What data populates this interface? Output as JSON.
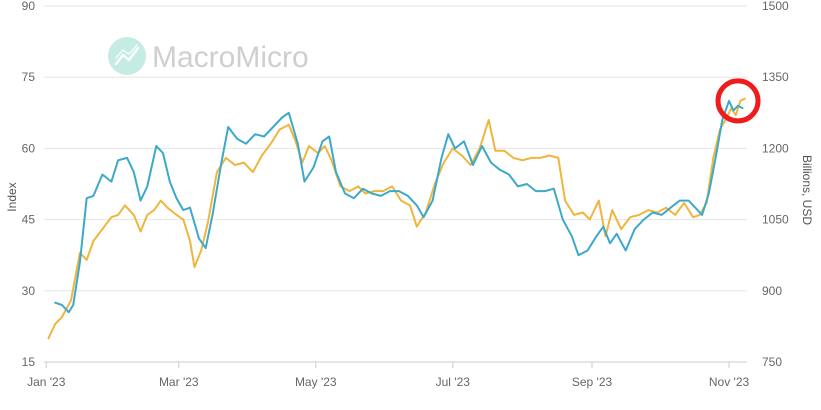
{
  "watermark": {
    "brand": "MacroMicro",
    "icon": "chart-line-icon",
    "color": "#7fd3c6"
  },
  "chart_data": {
    "type": "line",
    "xlabel": "",
    "ylabel_left": "Index",
    "ylabel_right": "Billions, USD",
    "x_ticks": [
      "Jan '23",
      "Mar '23",
      "May '23",
      "Jul '23",
      "Sep '23",
      "Nov '23"
    ],
    "x_tick_dates": [
      "2023-01-01",
      "2023-03-01",
      "2023-05-01",
      "2023-07-01",
      "2023-09-01",
      "2023-11-01"
    ],
    "x_range": [
      "2022-12-31",
      "2023-11-09"
    ],
    "y_left_ticks": [
      "15",
      "30",
      "45",
      "60",
      "75",
      "90"
    ],
    "ylim_left": [
      15,
      90
    ],
    "y_right_ticks": [
      "750",
      "900",
      "1050",
      "1200",
      "1350",
      "1500"
    ],
    "ylim_right": [
      750,
      1500
    ],
    "grid": true,
    "series": [
      {
        "axis": "left",
        "color": "#3da9c9",
        "points": [
          [
            "2023-01-05",
            27.5
          ],
          [
            "2023-01-08",
            27.0
          ],
          [
            "2023-01-11",
            25.5
          ],
          [
            "2023-01-13",
            27.0
          ],
          [
            "2023-01-16",
            36.0
          ],
          [
            "2023-01-19",
            49.5
          ],
          [
            "2023-01-22",
            50.0
          ],
          [
            "2023-01-26",
            54.5
          ],
          [
            "2023-01-30",
            53.0
          ],
          [
            "2023-02-02",
            57.5
          ],
          [
            "2023-02-06",
            58.0
          ],
          [
            "2023-02-09",
            55.0
          ],
          [
            "2023-02-12",
            49.0
          ],
          [
            "2023-02-15",
            52.0
          ],
          [
            "2023-02-19",
            60.5
          ],
          [
            "2023-02-22",
            59.0
          ],
          [
            "2023-02-25",
            53.0
          ],
          [
            "2023-02-28",
            49.5
          ],
          [
            "2023-03-03",
            47.0
          ],
          [
            "2023-03-06",
            47.5
          ],
          [
            "2023-03-10",
            41.0
          ],
          [
            "2023-03-13",
            39.0
          ],
          [
            "2023-03-16",
            46.0
          ],
          [
            "2023-03-20",
            57.0
          ],
          [
            "2023-03-23",
            64.5
          ],
          [
            "2023-03-27",
            62.0
          ],
          [
            "2023-03-31",
            61.0
          ],
          [
            "2023-04-04",
            63.0
          ],
          [
            "2023-04-08",
            62.5
          ],
          [
            "2023-04-12",
            64.5
          ],
          [
            "2023-04-16",
            66.5
          ],
          [
            "2023-04-19",
            67.5
          ],
          [
            "2023-04-23",
            61.0
          ],
          [
            "2023-04-26",
            53.0
          ],
          [
            "2023-04-30",
            56.0
          ],
          [
            "2023-05-04",
            61.5
          ],
          [
            "2023-05-07",
            62.5
          ],
          [
            "2023-05-10",
            55.0
          ],
          [
            "2023-05-14",
            50.5
          ],
          [
            "2023-05-18",
            49.5
          ],
          [
            "2023-05-22",
            51.5
          ],
          [
            "2023-05-26",
            50.5
          ],
          [
            "2023-05-30",
            50.0
          ],
          [
            "2023-06-03",
            51.0
          ],
          [
            "2023-06-07",
            51.0
          ],
          [
            "2023-06-11",
            50.0
          ],
          [
            "2023-06-15",
            48.0
          ],
          [
            "2023-06-18",
            45.5
          ],
          [
            "2023-06-22",
            49.0
          ],
          [
            "2023-06-26",
            58.0
          ],
          [
            "2023-06-29",
            63.0
          ],
          [
            "2023-07-02",
            60.0
          ],
          [
            "2023-07-06",
            61.5
          ],
          [
            "2023-07-10",
            56.5
          ],
          [
            "2023-07-14",
            60.5
          ],
          [
            "2023-07-18",
            57.0
          ],
          [
            "2023-07-22",
            55.5
          ],
          [
            "2023-07-26",
            54.5
          ],
          [
            "2023-07-30",
            52.0
          ],
          [
            "2023-08-03",
            52.5
          ],
          [
            "2023-08-07",
            51.0
          ],
          [
            "2023-08-11",
            51.0
          ],
          [
            "2023-08-15",
            51.5
          ],
          [
            "2023-08-19",
            45.0
          ],
          [
            "2023-08-23",
            41.5
          ],
          [
            "2023-08-26",
            37.5
          ],
          [
            "2023-08-30",
            38.5
          ],
          [
            "2023-09-03",
            41.5
          ],
          [
            "2023-09-06",
            43.5
          ],
          [
            "2023-09-09",
            40.0
          ],
          [
            "2023-09-12",
            42.0
          ],
          [
            "2023-09-16",
            38.5
          ],
          [
            "2023-09-20",
            43.0
          ],
          [
            "2023-09-24",
            45.0
          ],
          [
            "2023-09-28",
            46.5
          ],
          [
            "2023-10-02",
            46.0
          ],
          [
            "2023-10-06",
            47.5
          ],
          [
            "2023-10-10",
            49.0
          ],
          [
            "2023-10-14",
            49.0
          ],
          [
            "2023-10-17",
            47.5
          ],
          [
            "2023-10-20",
            46.0
          ],
          [
            "2023-10-23",
            50.5
          ],
          [
            "2023-10-26",
            58.0
          ],
          [
            "2023-10-29",
            66.0
          ],
          [
            "2023-11-01",
            70.0
          ],
          [
            "2023-11-03",
            68.0
          ],
          [
            "2023-11-05",
            69.0
          ],
          [
            "2023-11-07",
            68.5
          ]
        ]
      },
      {
        "axis": "right",
        "color": "#f0b53d",
        "points": [
          [
            "2023-01-02",
            800
          ],
          [
            "2023-01-05",
            830
          ],
          [
            "2023-01-08",
            845
          ],
          [
            "2023-01-12",
            880
          ],
          [
            "2023-01-16",
            980
          ],
          [
            "2023-01-19",
            965
          ],
          [
            "2023-01-22",
            1005
          ],
          [
            "2023-01-26",
            1030
          ],
          [
            "2023-01-30",
            1055
          ],
          [
            "2023-02-02",
            1060
          ],
          [
            "2023-02-05",
            1080
          ],
          [
            "2023-02-09",
            1060
          ],
          [
            "2023-02-12",
            1025
          ],
          [
            "2023-02-15",
            1060
          ],
          [
            "2023-02-18",
            1070
          ],
          [
            "2023-02-21",
            1090
          ],
          [
            "2023-02-24",
            1075
          ],
          [
            "2023-02-28",
            1060
          ],
          [
            "2023-03-03",
            1050
          ],
          [
            "2023-03-06",
            1005
          ],
          [
            "2023-03-08",
            950
          ],
          [
            "2023-03-11",
            985
          ],
          [
            "2023-03-14",
            1045
          ],
          [
            "2023-03-18",
            1150
          ],
          [
            "2023-03-22",
            1180
          ],
          [
            "2023-03-26",
            1165
          ],
          [
            "2023-03-30",
            1170
          ],
          [
            "2023-04-03",
            1150
          ],
          [
            "2023-04-07",
            1185
          ],
          [
            "2023-04-11",
            1210
          ],
          [
            "2023-04-15",
            1240
          ],
          [
            "2023-04-19",
            1250
          ],
          [
            "2023-04-22",
            1215
          ],
          [
            "2023-04-25",
            1170
          ],
          [
            "2023-04-28",
            1205
          ],
          [
            "2023-05-02",
            1190
          ],
          [
            "2023-05-05",
            1205
          ],
          [
            "2023-05-08",
            1175
          ],
          [
            "2023-05-12",
            1120
          ],
          [
            "2023-05-16",
            1110
          ],
          [
            "2023-05-20",
            1120
          ],
          [
            "2023-05-23",
            1105
          ],
          [
            "2023-05-27",
            1110
          ],
          [
            "2023-05-31",
            1110
          ],
          [
            "2023-06-04",
            1120
          ],
          [
            "2023-06-08",
            1090
          ],
          [
            "2023-06-12",
            1080
          ],
          [
            "2023-06-15",
            1035
          ],
          [
            "2023-06-19",
            1065
          ],
          [
            "2023-06-23",
            1125
          ],
          [
            "2023-06-27",
            1170
          ],
          [
            "2023-07-01",
            1200
          ],
          [
            "2023-07-05",
            1185
          ],
          [
            "2023-07-09",
            1165
          ],
          [
            "2023-07-13",
            1200
          ],
          [
            "2023-07-17",
            1260
          ],
          [
            "2023-07-20",
            1195
          ],
          [
            "2023-07-24",
            1195
          ],
          [
            "2023-07-28",
            1180
          ],
          [
            "2023-08-01",
            1175
          ],
          [
            "2023-08-05",
            1180
          ],
          [
            "2023-08-09",
            1180
          ],
          [
            "2023-08-13",
            1185
          ],
          [
            "2023-08-17",
            1180
          ],
          [
            "2023-08-20",
            1090
          ],
          [
            "2023-08-24",
            1060
          ],
          [
            "2023-08-28",
            1065
          ],
          [
            "2023-08-31",
            1050
          ],
          [
            "2023-09-04",
            1090
          ],
          [
            "2023-09-07",
            1015
          ],
          [
            "2023-09-10",
            1070
          ],
          [
            "2023-09-14",
            1030
          ],
          [
            "2023-09-18",
            1055
          ],
          [
            "2023-09-22",
            1060
          ],
          [
            "2023-09-26",
            1070
          ],
          [
            "2023-09-30",
            1065
          ],
          [
            "2023-10-04",
            1075
          ],
          [
            "2023-10-08",
            1060
          ],
          [
            "2023-10-12",
            1085
          ],
          [
            "2023-10-16",
            1055
          ],
          [
            "2023-10-19",
            1060
          ],
          [
            "2023-10-22",
            1085
          ],
          [
            "2023-10-25",
            1180
          ],
          [
            "2023-10-28",
            1240
          ],
          [
            "2023-10-31",
            1265
          ],
          [
            "2023-11-02",
            1285
          ],
          [
            "2023-11-04",
            1270
          ],
          [
            "2023-11-06",
            1300
          ],
          [
            "2023-11-08",
            1305
          ]
        ]
      }
    ],
    "annotation": {
      "shape": "circle",
      "color": "#ee1c1c",
      "at": [
        "2023-11-05",
        1300
      ],
      "axis": "right"
    }
  }
}
